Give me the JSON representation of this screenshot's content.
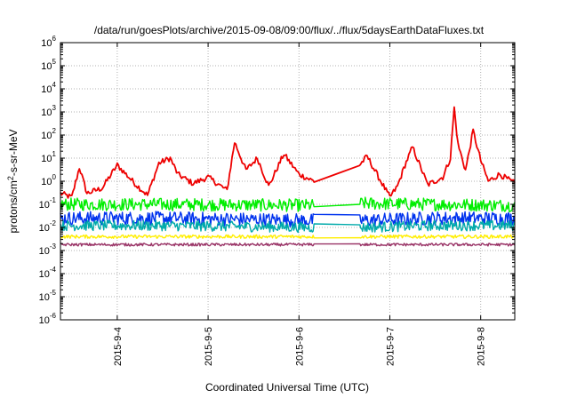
{
  "chart_data": {
    "type": "line",
    "title": "/data/run/goesPlots/archive/2015-09-08/09:00/flux/../flux/5daysEarthDataFluxes.txt",
    "xlabel": "Coordinated Universal Time (UTC)",
    "ylabel": "protons/cm2-s-sr-MeV",
    "ylabel_base": "protons/cm",
    "ylabel_sup": "2",
    "ylabel_rest": "-s-sr-MeV",
    "yscale": "log",
    "ylim": [
      1e-06,
      1000000.0
    ],
    "y_ticks": [
      {
        "exp": "-6"
      },
      {
        "exp": "-5"
      },
      {
        "exp": "-4"
      },
      {
        "exp": "-3"
      },
      {
        "exp": "-2"
      },
      {
        "exp": "-1"
      },
      {
        "exp": "0"
      },
      {
        "exp": "1"
      },
      {
        "exp": "2"
      },
      {
        "exp": "3"
      },
      {
        "exp": "4"
      },
      {
        "exp": "5"
      },
      {
        "exp": "6"
      }
    ],
    "y_tick_base": "10",
    "xlim": [
      "2015-09-03T09:00",
      "2015-09-08T09:00"
    ],
    "x_ticks": [
      "2015-9-4",
      "2015-9-5",
      "2015-9-6",
      "2015-9-7",
      "2015-9-8"
    ],
    "grid": true,
    "gap": [
      "2015-09-06T04:00",
      "2015-09-06T16:00"
    ],
    "series": [
      {
        "color": "#ee0000",
        "x": [
          "2015-09-03T09:00",
          "2015-09-03T12:00",
          "2015-09-03T14:00",
          "2015-09-03T16:00",
          "2015-09-03T20:00",
          "2015-09-04T00:00",
          "2015-09-04T05:00",
          "2015-09-04T08:00",
          "2015-09-04T11:00",
          "2015-09-04T14:00",
          "2015-09-04T16:00",
          "2015-09-04T20:00",
          "2015-09-05T00:00",
          "2015-09-05T05:00",
          "2015-09-05T07:00",
          "2015-09-05T10:00",
          "2015-09-05T13:00",
          "2015-09-05T16:00",
          "2015-09-05T20:00",
          "2015-09-06T00:00",
          "2015-09-06T04:00",
          "2015-09-06T16:00",
          "2015-09-06T18:00",
          "2015-09-06T20:00",
          "2015-09-07T00:00",
          "2015-09-07T02:00",
          "2015-09-07T04:00",
          "2015-09-07T06:00",
          "2015-09-07T10:00",
          "2015-09-07T14:00",
          "2015-09-07T16:00",
          "2015-09-07T17:00",
          "2015-09-07T18:00",
          "2015-09-07T20:00",
          "2015-09-07T22:00",
          "2015-09-08T00:00",
          "2015-09-08T02:00",
          "2015-09-08T05:00",
          "2015-09-08T09:00"
        ],
        "y": [
          0.3,
          0.2,
          4.0,
          0.3,
          0.5,
          5.0,
          0.7,
          0.25,
          6.0,
          10.0,
          2.0,
          0.8,
          1.5,
          0.4,
          50.0,
          3.0,
          10.0,
          0.6,
          15.0,
          2.0,
          1.0,
          5.0,
          12.0,
          3.0,
          0.2,
          0.6,
          5.0,
          30.0,
          0.7,
          1.5,
          10.0,
          1500.0,
          40.0,
          3.0,
          150.0,
          8.0,
          1.0,
          2.0,
          0.8
        ]
      },
      {
        "color": "#00ee00",
        "x": [
          "2015-09-03T09:00",
          "2015-09-04T12:00",
          "2015-09-06T04:00",
          "2015-09-06T16:00",
          "2015-09-07T12:00",
          "2015-09-08T09:00"
        ],
        "y": [
          0.1,
          0.1,
          0.09,
          0.11,
          0.1,
          0.09
        ]
      },
      {
        "color": "#0033ee",
        "x": [
          "2015-09-03T09:00",
          "2015-09-04T12:00",
          "2015-09-06T04:00",
          "2015-09-06T16:00",
          "2015-09-07T12:00",
          "2015-09-08T09:00"
        ],
        "y": [
          0.025,
          0.025,
          0.02,
          0.02,
          0.025,
          0.025
        ]
      },
      {
        "color": "#00aaaa",
        "x": [
          "2015-09-03T09:00",
          "2015-09-04T12:00",
          "2015-09-06T04:00",
          "2015-09-06T16:00",
          "2015-09-07T12:00",
          "2015-09-08T09:00"
        ],
        "y": [
          0.012,
          0.012,
          0.01,
          0.01,
          0.012,
          0.012
        ]
      },
      {
        "color": "#ffee00",
        "x": [
          "2015-09-03T09:00",
          "2015-09-04T12:00",
          "2015-09-06T04:00",
          "2015-09-06T16:00",
          "2015-09-07T12:00",
          "2015-09-08T09:00"
        ],
        "y": [
          0.004,
          0.004,
          0.004,
          0.004,
          0.004,
          0.004
        ]
      },
      {
        "color": "#993366",
        "x": [
          "2015-09-03T09:00",
          "2015-09-04T12:00",
          "2015-09-06T04:00",
          "2015-09-06T16:00",
          "2015-09-07T12:00",
          "2015-09-08T09:00"
        ],
        "y": [
          0.0018,
          0.0018,
          0.0018,
          0.0018,
          0.0018,
          0.0018
        ]
      }
    ]
  }
}
